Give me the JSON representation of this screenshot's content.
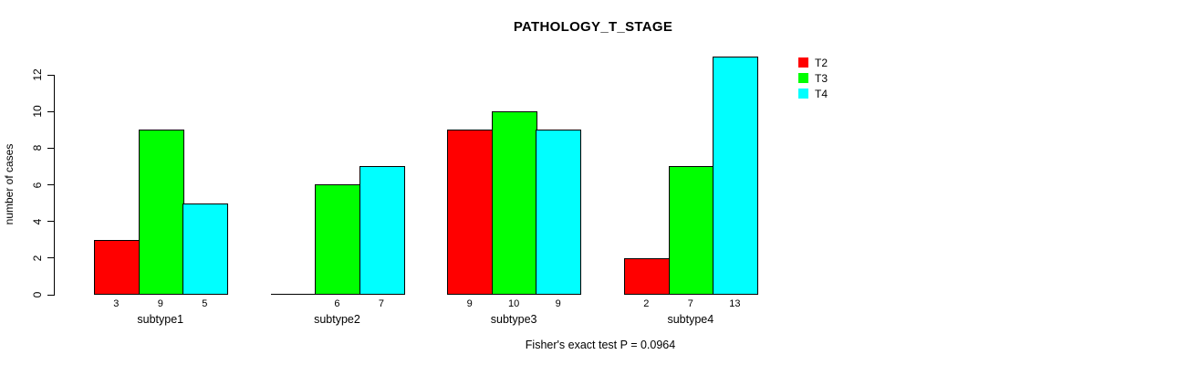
{
  "chart_data": {
    "type": "bar",
    "title": "PATHOLOGY_T_STAGE",
    "xlabel": "",
    "ylabel": "number of cases",
    "footer": "Fisher's exact test P = 0.0964",
    "categories": [
      "subtype1",
      "subtype2",
      "subtype3",
      "subtype4"
    ],
    "series": [
      {
        "name": "T2",
        "color": "#ff0000",
        "values": [
          3,
          0,
          9,
          2
        ]
      },
      {
        "name": "T3",
        "color": "#00ff00",
        "values": [
          9,
          6,
          10,
          7
        ]
      },
      {
        "name": "T4",
        "color": "#00ffff",
        "values": [
          5,
          7,
          9,
          13
        ]
      }
    ],
    "bar_labels": [
      [
        "3",
        "9",
        "5"
      ],
      [
        "",
        "6",
        "7"
      ],
      [
        "9",
        "10",
        "9"
      ],
      [
        "2",
        "7",
        "13"
      ]
    ],
    "yticks": [
      0,
      2,
      4,
      6,
      8,
      10,
      12
    ],
    "ylim": [
      0,
      12
    ],
    "grid": false,
    "legend_position": "top-right",
    "bar_border_color": "#000000",
    "axis_color": "#000000"
  }
}
